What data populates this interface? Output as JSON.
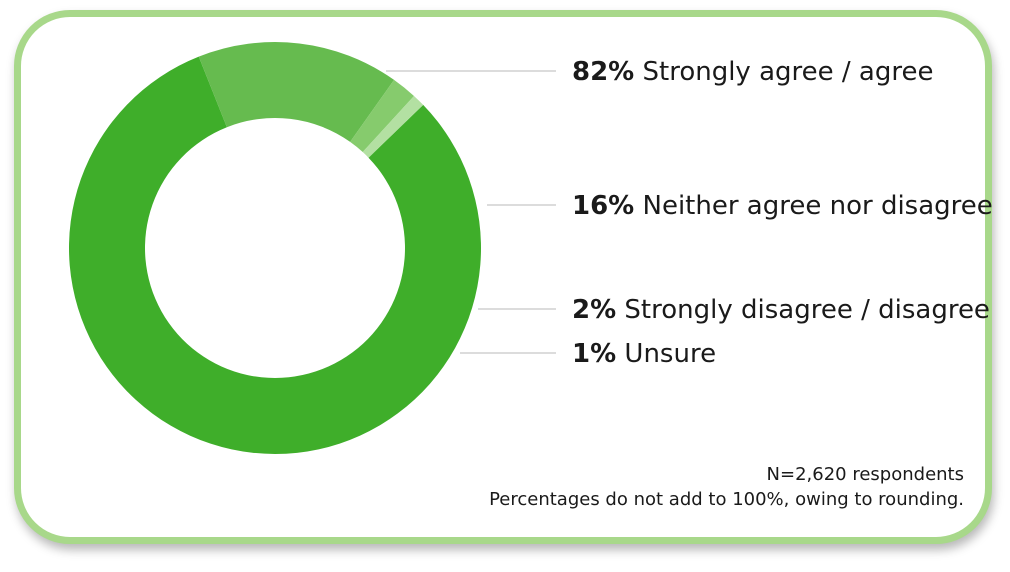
{
  "chart_data": {
    "type": "pie",
    "donut": true,
    "slices": [
      {
        "label": "Strongly agree / agree",
        "value": 82,
        "display": "82%",
        "color": "#3fae2a"
      },
      {
        "label": "Neither agree nor disagree",
        "value": 16,
        "display": "16%",
        "color": "#66bb4f"
      },
      {
        "label": "Strongly disagree / disagree",
        "value": 2,
        "display": "2%",
        "color": "#86cb6d"
      },
      {
        "label": "Unsure",
        "value": 1,
        "display": "1%",
        "color": "#b3e0a2"
      }
    ],
    "legend_placement": "right"
  },
  "footnotes": {
    "respondents": "N=2,620 respondents",
    "rounding": "Percentages do not add to 100%, owing to rounding."
  },
  "colors": {
    "frame": "#a8d88a",
    "leader_line": "#d0d0d0"
  }
}
